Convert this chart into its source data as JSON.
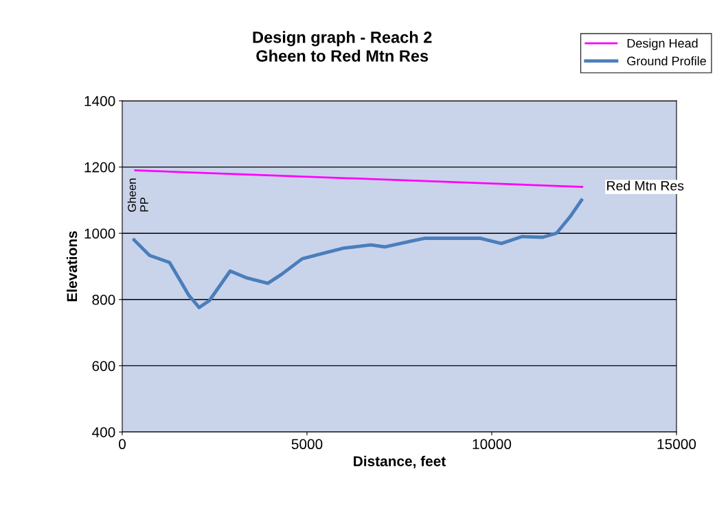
{
  "chart_data": {
    "type": "line",
    "title": "Design graph - Reach 2\nGheen to Red Mtn Res",
    "xlabel": "Distance, feet",
    "ylabel": "Elevations",
    "series": [
      {
        "name": "Design Head",
        "color": "#ff00ff",
        "x": [
          350,
          12450
        ],
        "values": [
          1190,
          1140
        ]
      },
      {
        "name": "Ground Profile",
        "color": "#4a7ebb",
        "x": [
          320,
          740,
          1280,
          1800,
          2080,
          2360,
          2920,
          3380,
          3940,
          4310,
          4870,
          5240,
          5990,
          6730,
          7100,
          7840,
          8200,
          9680,
          10260,
          10820,
          11380,
          11750,
          12120,
          12430
        ],
        "values": [
          980,
          933,
          912,
          813,
          776,
          797,
          886,
          865,
          849,
          876,
          923,
          934,
          955,
          965,
          959,
          977,
          985,
          985,
          969,
          990,
          988,
          1000,
          1050,
          1100
        ]
      }
    ],
    "annotations": [
      {
        "text": "Gheen\nPP",
        "x": 350,
        "y": 1190
      },
      {
        "text": "Red Mtn Res",
        "x": 12450,
        "y": 1140
      }
    ],
    "xlim": [
      0,
      15000
    ],
    "xticks": [
      0,
      5000,
      10000,
      15000
    ],
    "ylim": [
      400,
      1400
    ],
    "yticks": [
      400,
      600,
      800,
      1000,
      1200,
      1400
    ],
    "grid": "y",
    "legend": "top right",
    "marker": "none",
    "line_style": "solid"
  }
}
